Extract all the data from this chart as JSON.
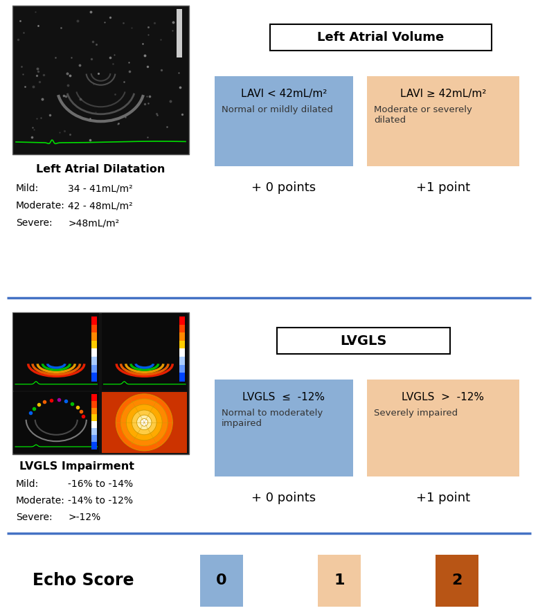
{
  "bg_color": "#ffffff",
  "divider_color": "#4472c4",
  "divider_lw": 2.5,
  "title1": "Left Atrial Volume",
  "title2": "LVGLS",
  "lavi_left_title": "LAVI < 42mL/m²",
  "lavi_left_desc": "Normal or mildly dilated",
  "lavi_left_points": "+ 0 points",
  "lavi_left_color": "#8bafd6",
  "lavi_right_title": "LAVI ≥ 42mL/m²",
  "lavi_right_desc": "Moderate or severely\ndilated",
  "lavi_right_points": "+1 point",
  "lavi_right_color": "#f2c9a0",
  "lvgls_left_title": "LVGLS  ≤  -12%",
  "lvgls_left_desc": "Normal to moderately\nimpaired",
  "lvgls_left_points": "+ 0 points",
  "lvgls_left_color": "#8bafd6",
  "lvgls_right_title": "LVGLS  >  -12%",
  "lvgls_right_desc": "Severely impaired",
  "lvgls_right_points": "+1 point",
  "lvgls_right_color": "#f2c9a0",
  "la_dilatation_title": "Left Atrial Dilatation",
  "la_dilatation_lines": [
    [
      "Mild:",
      "34 - 41mL/m²"
    ],
    [
      "Moderate:",
      "42 - 48mL/m²"
    ],
    [
      "Severe:",
      ">48mL/m²"
    ]
  ],
  "lvgls_impairment_title": "LVGLS Impairment",
  "lvgls_impairment_lines": [
    [
      "Mild:",
      "-16% to -14%"
    ],
    [
      "Moderate:",
      "-14% to -12%"
    ],
    [
      "Severe:",
      ">-12%"
    ]
  ],
  "echo_score_label": "Echo Score",
  "echo_scores": [
    "0",
    "1",
    "2"
  ],
  "echo_score_colors": [
    "#8bafd6",
    "#f2c9a0",
    "#b85515"
  ]
}
